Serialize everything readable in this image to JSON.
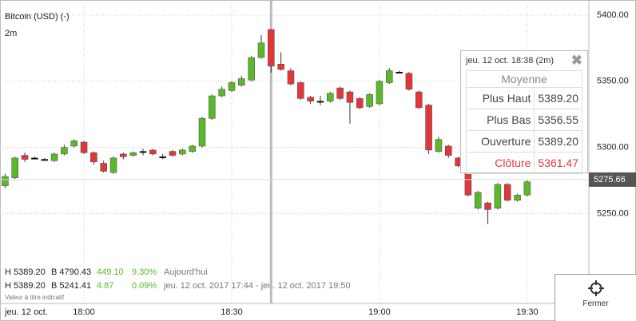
{
  "chart_data": {
    "type": "candlestick",
    "title": "Bitcoin (USD) (-)",
    "subtitle": "2m",
    "date_label": "jeu. 12 oct.",
    "categories": [
      null,
      null,
      null,
      null,
      null,
      null,
      null,
      null,
      "18:00",
      null,
      null,
      null,
      null,
      null,
      null,
      null,
      null,
      null,
      null,
      null,
      null,
      null,
      null,
      "18:30",
      null,
      null,
      null,
      null,
      null,
      null,
      null,
      null,
      null,
      null,
      null,
      null,
      null,
      null,
      "19:00",
      null,
      null,
      null,
      null,
      null,
      null,
      null,
      null,
      null,
      null,
      null,
      null,
      null,
      null,
      "19:30"
    ],
    "open": [
      5271,
      5277,
      5294,
      5292,
      5291,
      5290,
      5295,
      5301,
      5304,
      5296,
      5288,
      5281,
      5295,
      5294,
      5297,
      5298,
      5293,
      5297,
      5295,
      5297,
      5301,
      5322,
      5339,
      5343,
      5347,
      5351,
      5368,
      5389.2,
      5363,
      5358,
      5349,
      5338,
      5335,
      5335,
      5345,
      5342,
      5337,
      5331,
      5333,
      5349,
      5357,
      5356,
      5342,
      5332,
      5297,
      5301,
      5292,
      5284,
      5254,
      5258,
      5254,
      5272,
      5260,
      5264
    ],
    "high": [
      5280,
      5293,
      5296,
      5293,
      5292,
      5296,
      5302,
      5306,
      5305,
      5297,
      5290,
      5293,
      5296,
      5297,
      5299,
      5299,
      5295,
      5298,
      5299,
      5302,
      5323,
      5340,
      5346,
      5350,
      5354,
      5369,
      5385,
      5389.2,
      5372,
      5360,
      5350,
      5339,
      5339,
      5342,
      5346,
      5343,
      5338,
      5341,
      5351,
      5360,
      5358,
      5357,
      5343,
      5333,
      5308,
      5302,
      5293,
      5286,
      5267,
      5259,
      5273,
      5273,
      5265,
      5275
    ],
    "low": [
      5269,
      5276,
      5289,
      5291,
      5290,
      5289,
      5294,
      5300,
      5295,
      5287,
      5281,
      5280,
      5291,
      5293,
      5294,
      5294,
      5291,
      5293,
      5294,
      5296,
      5300,
      5321,
      5338,
      5342,
      5346,
      5350,
      5367,
      5356.55,
      5358,
      5347,
      5336,
      5333,
      5332,
      5334,
      5336,
      5318,
      5329,
      5330,
      5332,
      5348,
      5356,
      5343,
      5329,
      5295,
      5296,
      5292,
      5285,
      5263,
      5253,
      5242,
      5253,
      5259,
      5259,
      5263
    ],
    "close": [
      5278,
      5292,
      5291,
      5292,
      5291,
      5295,
      5300,
      5305,
      5296,
      5289,
      5282,
      5292,
      5293,
      5296,
      5297,
      5295,
      5293,
      5294,
      5298,
      5301,
      5322,
      5339,
      5344,
      5349,
      5352,
      5368,
      5379,
      5361.47,
      5359,
      5348,
      5337,
      5335,
      5335,
      5341,
      5337,
      5334,
      5330,
      5340,
      5350,
      5358,
      5357,
      5344,
      5330,
      5298,
      5306,
      5294,
      5286,
      5264,
      5266,
      5253,
      5272,
      5260,
      5264,
      5274
    ],
    "up_color": "#5cb82a",
    "down_color": "#e0383a",
    "doji_color": "#111111",
    "ylim": [
      5182,
      5411.5
    ],
    "yticks": [
      {
        "value": 5250,
        "label": "5250.00"
      },
      {
        "value": 5300,
        "label": "5300.00"
      },
      {
        "value": 5350,
        "label": "5350.00"
      },
      {
        "value": 5400,
        "label": "5400.00"
      }
    ],
    "grid": true,
    "last_price": 5275.66
  },
  "info": {
    "rows": [
      {
        "high": "H 5389.20",
        "low": "B 4790.43",
        "change": "449.10",
        "pct": "9.30%",
        "period": "Aujourd'hui"
      },
      {
        "high": "H 5389.20",
        "low": "B 5241.41",
        "change": "4.87",
        "pct": "0.09%",
        "period": "jeu. 12 oct. 2017 17:44 - jeu. 12 oct. 2017 19:50"
      }
    ],
    "disclaimer": "Valeur à titre indicatif"
  },
  "tooltip": {
    "header": "jeu. 12 oct. 18:38 (2m)",
    "close_icon": "✖",
    "average": "Moyenne",
    "rows": [
      [
        "Plus Haut",
        "5389.20"
      ],
      [
        "Plus Bas",
        "5356.55"
      ],
      [
        "Ouverture",
        "5389.20"
      ],
      [
        "Clôture",
        "5361.47"
      ]
    ]
  },
  "button": {
    "label": "Fermer"
  }
}
